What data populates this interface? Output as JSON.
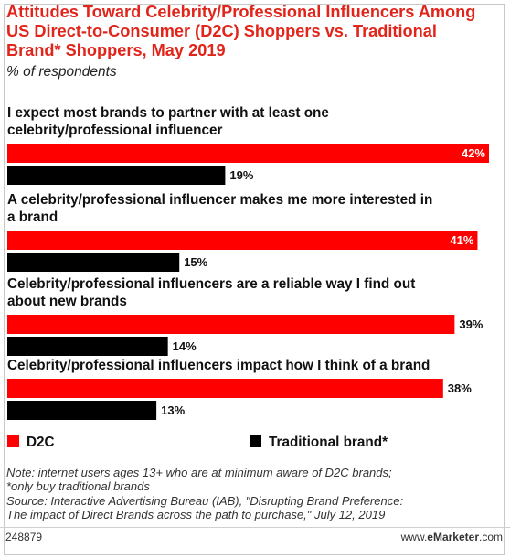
{
  "header": {
    "title": "Attitudes Toward Celebrity/Professional Influencers Among US Direct-to-Consumer (D2C) Shoppers vs. Traditional Brand* Shoppers, May 2019",
    "subtitle": "% of respondents"
  },
  "colors": {
    "d2c": "#ff0000",
    "traditional": "#000000",
    "title": "#e1251b"
  },
  "chart_data": {
    "type": "bar",
    "orientation": "horizontal",
    "categories": [
      [
        "I expect most brands to partner with at least one",
        "celebrity/professional influencer"
      ],
      [
        "A celebrity/professional influencer makes me more interested in",
        "a brand"
      ],
      [
        "Celebrity/professional influencers are a reliable way I find out",
        "about new brands"
      ],
      [
        "Celebrity/professional influencers impact how I think of a brand"
      ]
    ],
    "series": [
      {
        "name": "D2C",
        "values": [
          42,
          41,
          39,
          38
        ],
        "labels": [
          "42%",
          "41%",
          "39%",
          "38%"
        ]
      },
      {
        "name": "Traditional brand*",
        "values": [
          19,
          15,
          14,
          13
        ],
        "labels": [
          "19%",
          "15%",
          "14%",
          "13%"
        ]
      }
    ],
    "xlim": [
      0,
      42
    ],
    "legend": "bottom-left",
    "grid": false
  },
  "notes": {
    "lines": [
      "Note: internet users ages 13+ who are at minimum aware of D2C brands;",
      "*only buy traditional brands",
      "Source: Interactive Advertising Bureau (IAB), \"Disrupting Brand Preference:",
      "The impact of Direct Brands across the path to purchase,\" July 12, 2019"
    ]
  },
  "footer": {
    "id": "248879",
    "brand_prefix": "www.",
    "brand_name": "eMarketer",
    "brand_suffix": ".com"
  }
}
